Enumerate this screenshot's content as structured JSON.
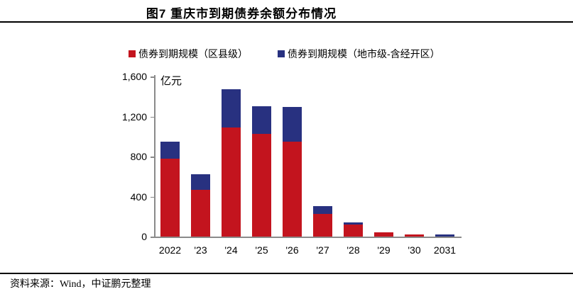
{
  "title": "图7 重庆市到期债券余额分布情况",
  "source_note": "资料来源：Wind，中证鹏元整理",
  "colors": {
    "county_red": "#C3141E",
    "city_blue": "#283180",
    "axis_gray": "#8A8A8A",
    "rule_black": "#000000"
  },
  "chart_data": {
    "type": "bar",
    "stacked": true,
    "title": "图7 重庆市到期债券余额分布情况",
    "unit_label": "亿元",
    "categories": [
      "2022",
      "'23",
      "'24",
      "'25",
      "'26",
      "'27",
      "'28",
      "'29",
      "'30",
      "2031"
    ],
    "series": [
      {
        "name": "债券到期规模（区县级）",
        "color": "#C3141E",
        "values": [
          780,
          470,
          1090,
          1030,
          950,
          230,
          120,
          40,
          18,
          0
        ]
      },
      {
        "name": "债券到期规模（地市级-含经开区）",
        "color": "#283180",
        "values": [
          170,
          150,
          380,
          270,
          345,
          75,
          25,
          0,
          0,
          20
        ]
      }
    ],
    "ylim": [
      0,
      1600
    ],
    "yticks": [
      0,
      400,
      800,
      1200,
      1600
    ],
    "ytick_labels": [
      "0",
      "400",
      "800",
      "1,200",
      "1,600"
    ],
    "legend_position": "top",
    "grid": false
  }
}
